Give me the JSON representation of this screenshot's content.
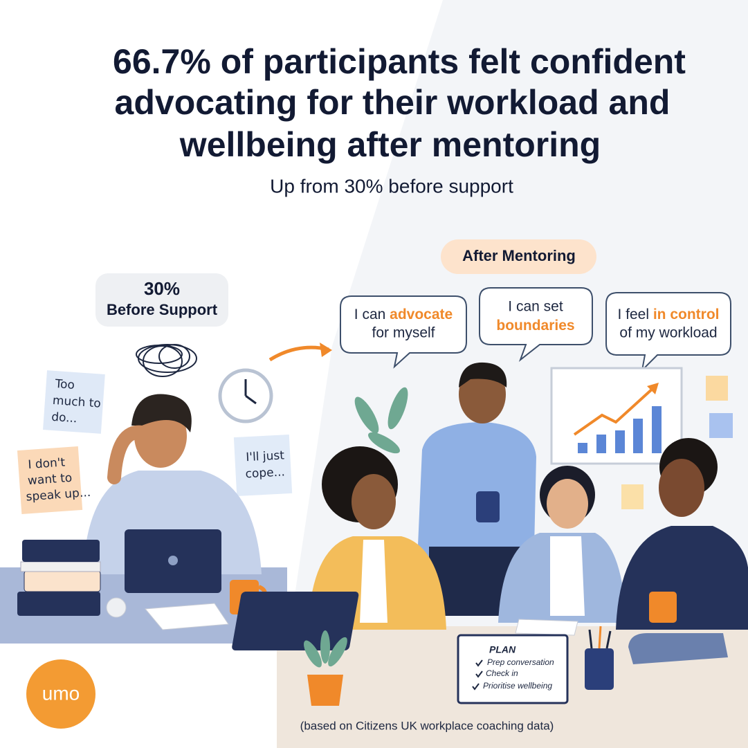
{
  "header": {
    "title_lines": [
      "66.7% of participants felt confident",
      "advocating for their workload and",
      "wellbeing after mentoring"
    ],
    "subtitle": "Up from 30% before support"
  },
  "before": {
    "value": "30%",
    "label": "Before Support"
  },
  "notes": [
    {
      "lines": [
        "Too",
        "much to",
        "do..."
      ]
    },
    {
      "lines": [
        "I don't",
        "want to",
        "speak up..."
      ]
    },
    {
      "lines": [
        "I'll just",
        "cope..."
      ]
    }
  ],
  "after": {
    "label": "After Mentoring",
    "bubbles": [
      {
        "before": "I can ",
        "highlight": "advocate",
        "after": "for myself"
      },
      {
        "before": "I can set",
        "highlight": "boundaries"
      },
      {
        "before": "I feel ",
        "highlight": "in control",
        "after": "of my workload"
      }
    ]
  },
  "plan": {
    "title": "PLAN",
    "items": [
      "Prep conversation",
      "Check in",
      "Prioritise wellbeing"
    ]
  },
  "footer": {
    "logo": "umo",
    "source": "(based on Citizens UK workplace coaching data)"
  }
}
